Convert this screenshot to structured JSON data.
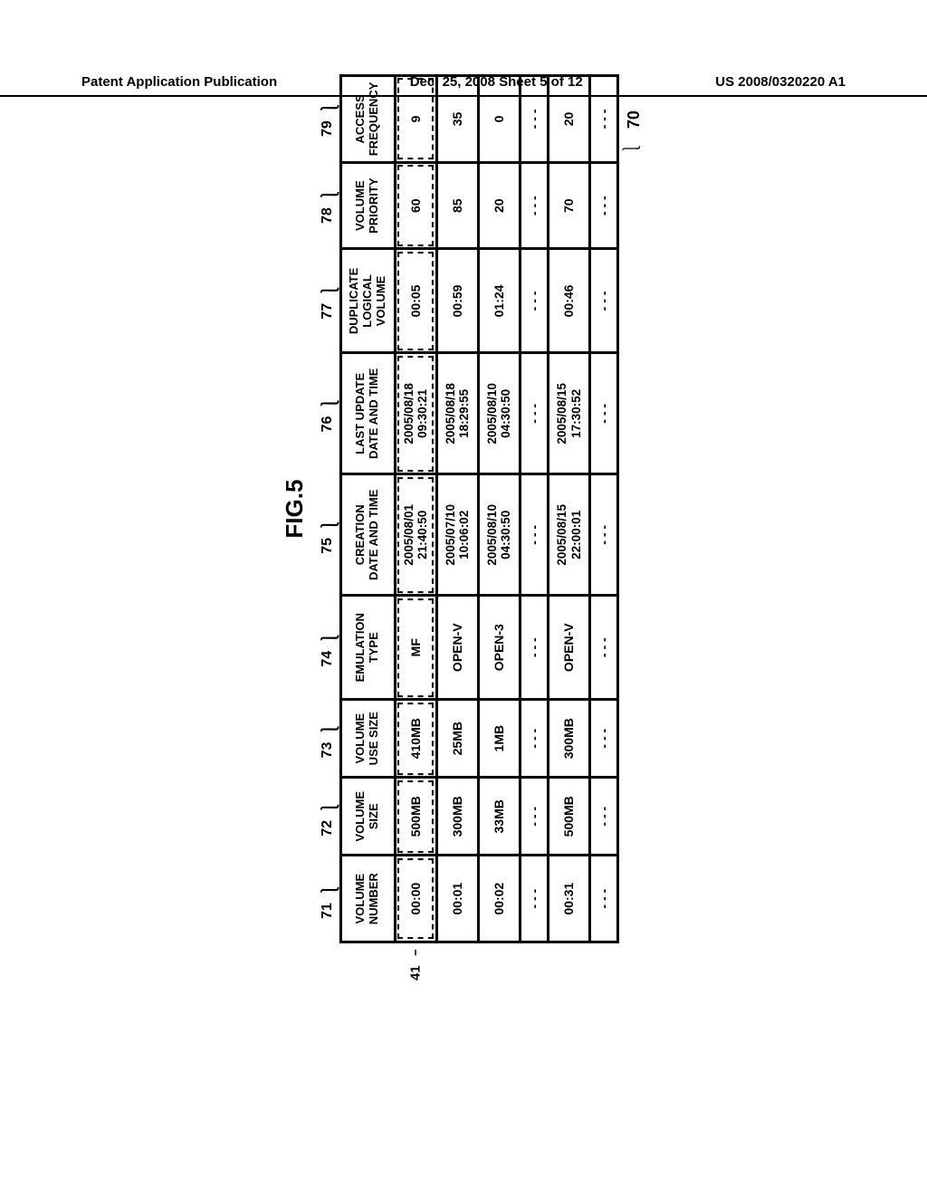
{
  "header": {
    "left": "Patent Application Publication",
    "center": "Dec. 25, 2008  Sheet 5 of 12",
    "right": "US 2008/0320220 A1"
  },
  "figure": {
    "title": "FIG.5",
    "table_ref_number": "70",
    "row_ref": {
      "label": "41",
      "target_row_index": 0
    },
    "column_ids": [
      "71",
      "72",
      "73",
      "74",
      "75",
      "76",
      "77",
      "78",
      "79"
    ],
    "column_widths_pct": [
      10,
      9,
      9,
      12,
      14,
      14,
      12,
      10,
      10
    ],
    "columns": [
      "VOLUME\nNUMBER",
      "VOLUME\nSIZE",
      "VOLUME\nUSE SIZE",
      "EMULATION\nTYPE",
      "CREATION\nDATE AND TIME",
      "LAST UPDATE\nDATE AND TIME",
      "DUPLICATE\nLOGICAL\nVOLUME",
      "VOLUME\nPRIORITY",
      "ACCESS\nFREQUENCY"
    ],
    "rows": [
      {
        "dashed": true,
        "cells": [
          "00:00",
          "500MB",
          "410MB",
          "MF",
          "2005/08/01\n21:40:50",
          "2005/08/18\n09:30:21",
          "00:05",
          "60",
          "9"
        ]
      },
      {
        "dashed": false,
        "cells": [
          "00:01",
          "300MB",
          "25MB",
          "OPEN-V",
          "2005/07/10\n10:06:02",
          "2005/08/18\n18:29:55",
          "00:59",
          "85",
          "35"
        ]
      },
      {
        "dashed": false,
        "cells": [
          "00:02",
          "33MB",
          "1MB",
          "OPEN-3",
          "2005/08/10\n04:30:50",
          "2005/08/10\n04:30:50",
          "01:24",
          "20",
          "0"
        ]
      },
      {
        "dashed": false,
        "cells": [
          "- - -",
          "- - -",
          "- - -",
          "- - -",
          "- - -",
          "- - -",
          "- - -",
          "- - -",
          "- - -"
        ]
      },
      {
        "dashed": false,
        "cells": [
          "00:31",
          "500MB",
          "300MB",
          "OPEN-V",
          "2005/08/15\n22:00:01",
          "2005/08/15\n17:30:52",
          "00:46",
          "70",
          "20"
        ]
      },
      {
        "dashed": false,
        "cells": [
          "- - -",
          "- - -",
          "- - -",
          "- - -",
          "- - -",
          "- - -",
          "- - -",
          "- - -",
          "- - -"
        ]
      }
    ]
  }
}
